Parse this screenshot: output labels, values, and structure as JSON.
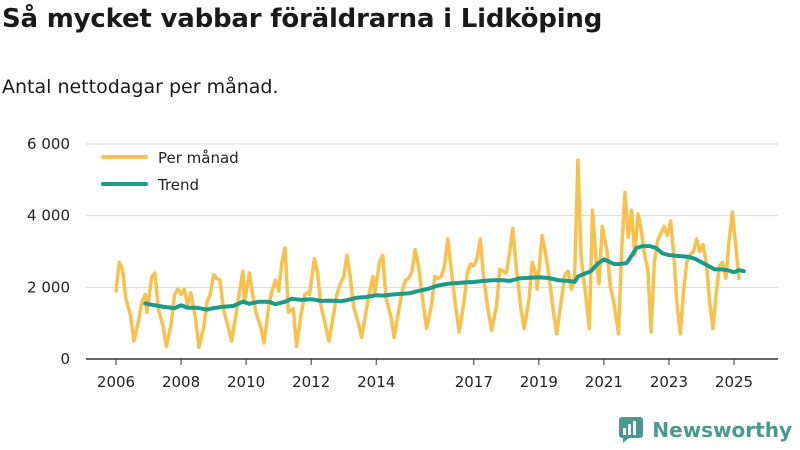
{
  "header": {
    "title": "Så mycket vabbar föräldrarna i Lidköping",
    "subtitle": "Antal nettodagar per månad."
  },
  "brand": {
    "name": "Newsworthy",
    "color": "#4a9990"
  },
  "colors": {
    "per_month": "#f8c14d",
    "trend": "#1b9a8a",
    "grid": "#d9d9d9",
    "axis": "#333333"
  },
  "chart_data": {
    "type": "line",
    "title": "Så mycket vabbar föräldrarna i Lidköping",
    "subtitle": "Antal nettodagar per månad.",
    "xlabel": "",
    "ylabel": "",
    "xlim": [
      2006,
      2025.75
    ],
    "ylim": [
      0,
      6000
    ],
    "y_ticks": [
      {
        "value": 0,
        "label": "0"
      },
      {
        "value": 2000,
        "label": "2 000"
      },
      {
        "value": 4000,
        "label": "4 000"
      },
      {
        "value": 6000,
        "label": "6 000"
      }
    ],
    "x_ticks": [
      {
        "value": 2006,
        "label": "2006"
      },
      {
        "value": 2008,
        "label": "2008"
      },
      {
        "value": 2010,
        "label": "2010"
      },
      {
        "value": 2012,
        "label": "2012"
      },
      {
        "value": 2014,
        "label": "2014"
      },
      {
        "value": 2017,
        "label": "2017"
      },
      {
        "value": 2019,
        "label": "2019"
      },
      {
        "value": 2021,
        "label": "2021"
      },
      {
        "value": 2023,
        "label": "2023"
      },
      {
        "value": 2025,
        "label": "2025"
      }
    ],
    "grid": "horizontal",
    "legend_position": "top-left",
    "series": [
      {
        "name": "Per månad",
        "color": "#f8c14d",
        "points": [
          [
            2006.0,
            1900
          ],
          [
            2006.1,
            2700
          ],
          [
            2006.2,
            2500
          ],
          [
            2006.3,
            1700
          ],
          [
            2006.45,
            1200
          ],
          [
            2006.55,
            500
          ],
          [
            2006.7,
            1100
          ],
          [
            2006.8,
            1600
          ],
          [
            2006.9,
            1800
          ],
          [
            2006.95,
            1300
          ],
          [
            2007.1,
            2300
          ],
          [
            2007.2,
            2400
          ],
          [
            2007.3,
            1400
          ],
          [
            2007.45,
            900
          ],
          [
            2007.55,
            350
          ],
          [
            2007.7,
            1000
          ],
          [
            2007.8,
            1800
          ],
          [
            2007.9,
            1950
          ],
          [
            2008.0,
            1800
          ],
          [
            2008.1,
            1950
          ],
          [
            2008.2,
            1500
          ],
          [
            2008.3,
            1850
          ],
          [
            2008.45,
            1100
          ],
          [
            2008.55,
            320
          ],
          [
            2008.7,
            900
          ],
          [
            2008.8,
            1600
          ],
          [
            2008.9,
            1800
          ],
          [
            2009.0,
            2350
          ],
          [
            2009.1,
            2250
          ],
          [
            2009.2,
            2200
          ],
          [
            2009.3,
            1400
          ],
          [
            2009.45,
            900
          ],
          [
            2009.55,
            500
          ],
          [
            2009.7,
            1300
          ],
          [
            2009.8,
            1900
          ],
          [
            2009.9,
            2450
          ],
          [
            2009.95,
            1600
          ],
          [
            2010.1,
            2400
          ],
          [
            2010.2,
            1800
          ],
          [
            2010.3,
            1300
          ],
          [
            2010.45,
            900
          ],
          [
            2010.55,
            450
          ],
          [
            2010.7,
            1500
          ],
          [
            2010.8,
            1900
          ],
          [
            2010.9,
            2200
          ],
          [
            2011.0,
            1900
          ],
          [
            2011.1,
            2700
          ],
          [
            2011.2,
            3100
          ],
          [
            2011.3,
            1300
          ],
          [
            2011.45,
            1400
          ],
          [
            2011.55,
            350
          ],
          [
            2011.7,
            1300
          ],
          [
            2011.8,
            1800
          ],
          [
            2011.9,
            1850
          ],
          [
            2011.95,
            1800
          ],
          [
            2012.1,
            2800
          ],
          [
            2012.2,
            2400
          ],
          [
            2012.3,
            1500
          ],
          [
            2012.45,
            900
          ],
          [
            2012.55,
            500
          ],
          [
            2012.7,
            1300
          ],
          [
            2012.8,
            1850
          ],
          [
            2012.9,
            2100
          ],
          [
            2013.0,
            2300
          ],
          [
            2013.1,
            2900
          ],
          [
            2013.2,
            2300
          ],
          [
            2013.3,
            1500
          ],
          [
            2013.45,
            1000
          ],
          [
            2013.55,
            600
          ],
          [
            2013.7,
            1400
          ],
          [
            2013.8,
            1900
          ],
          [
            2013.9,
            2300
          ],
          [
            2013.95,
            1800
          ],
          [
            2014.1,
            2700
          ],
          [
            2014.2,
            2900
          ],
          [
            2014.3,
            1700
          ],
          [
            2014.45,
            1200
          ],
          [
            2014.55,
            600
          ],
          [
            2014.7,
            1400
          ],
          [
            2014.8,
            1900
          ],
          [
            2014.9,
            2200
          ],
          [
            2015.0,
            2250
          ],
          [
            2015.1,
            2450
          ],
          [
            2015.2,
            3050
          ],
          [
            2015.3,
            2600
          ],
          [
            2015.45,
            1500
          ],
          [
            2015.55,
            850
          ],
          [
            2015.7,
            1500
          ],
          [
            2015.8,
            2300
          ],
          [
            2015.9,
            2250
          ],
          [
            2016.0,
            2300
          ],
          [
            2016.1,
            2600
          ],
          [
            2016.2,
            3350
          ],
          [
            2016.3,
            2550
          ],
          [
            2016.45,
            1400
          ],
          [
            2016.55,
            750
          ],
          [
            2016.7,
            1600
          ],
          [
            2016.8,
            2400
          ],
          [
            2016.9,
            2650
          ],
          [
            2017.0,
            2600
          ],
          [
            2017.1,
            2800
          ],
          [
            2017.2,
            3350
          ],
          [
            2017.3,
            2300
          ],
          [
            2017.45,
            1300
          ],
          [
            2017.55,
            800
          ],
          [
            2017.7,
            1500
          ],
          [
            2017.8,
            2500
          ],
          [
            2017.9,
            2450
          ],
          [
            2018.0,
            2400
          ],
          [
            2018.1,
            2950
          ],
          [
            2018.2,
            3650
          ],
          [
            2018.3,
            2600
          ],
          [
            2018.45,
            1400
          ],
          [
            2018.55,
            850
          ],
          [
            2018.7,
            1700
          ],
          [
            2018.8,
            2700
          ],
          [
            2018.9,
            2400
          ],
          [
            2018.95,
            1950
          ],
          [
            2019.1,
            3450
          ],
          [
            2019.2,
            3000
          ],
          [
            2019.3,
            2400
          ],
          [
            2019.45,
            1300
          ],
          [
            2019.55,
            700
          ],
          [
            2019.7,
            1700
          ],
          [
            2019.8,
            2350
          ],
          [
            2019.9,
            2450
          ],
          [
            2020.0,
            1950
          ],
          [
            2020.1,
            2300
          ],
          [
            2020.2,
            5550
          ],
          [
            2020.3,
            2850
          ],
          [
            2020.45,
            1700
          ],
          [
            2020.55,
            850
          ],
          [
            2020.65,
            4150
          ],
          [
            2020.75,
            2850
          ],
          [
            2020.85,
            2100
          ],
          [
            2020.95,
            3700
          ],
          [
            2021.1,
            3000
          ],
          [
            2021.2,
            2000
          ],
          [
            2021.3,
            1600
          ],
          [
            2021.45,
            700
          ],
          [
            2021.55,
            3100
          ],
          [
            2021.65,
            4650
          ],
          [
            2021.75,
            3400
          ],
          [
            2021.85,
            4150
          ],
          [
            2021.95,
            2900
          ],
          [
            2022.05,
            4050
          ],
          [
            2022.15,
            3600
          ],
          [
            2022.25,
            2900
          ],
          [
            2022.35,
            2500
          ],
          [
            2022.45,
            750
          ],
          [
            2022.55,
            2700
          ],
          [
            2022.65,
            3300
          ],
          [
            2022.75,
            3500
          ],
          [
            2022.85,
            3700
          ],
          [
            2022.95,
            3450
          ],
          [
            2023.05,
            3850
          ],
          [
            2023.15,
            2900
          ],
          [
            2023.25,
            1500
          ],
          [
            2023.35,
            700
          ],
          [
            2023.45,
            1900
          ],
          [
            2023.55,
            2700
          ],
          [
            2023.65,
            2900
          ],
          [
            2023.75,
            3000
          ],
          [
            2023.85,
            3350
          ],
          [
            2023.95,
            3000
          ],
          [
            2024.05,
            3200
          ],
          [
            2024.15,
            2650
          ],
          [
            2024.25,
            1600
          ],
          [
            2024.35,
            850
          ],
          [
            2024.45,
            1800
          ],
          [
            2024.55,
            2600
          ],
          [
            2024.65,
            2700
          ],
          [
            2024.75,
            2250
          ],
          [
            2024.85,
            3300
          ],
          [
            2024.95,
            4100
          ],
          [
            2025.05,
            3200
          ],
          [
            2025.15,
            2250
          ]
        ]
      },
      {
        "name": "Trend",
        "color": "#1b9a8a",
        "points": [
          [
            2006.9,
            1550
          ],
          [
            2007.2,
            1500
          ],
          [
            2007.5,
            1450
          ],
          [
            2007.8,
            1420
          ],
          [
            2008.0,
            1500
          ],
          [
            2008.2,
            1430
          ],
          [
            2008.5,
            1430
          ],
          [
            2008.8,
            1380
          ],
          [
            2009.0,
            1420
          ],
          [
            2009.3,
            1460
          ],
          [
            2009.6,
            1480
          ],
          [
            2009.9,
            1600
          ],
          [
            2010.1,
            1540
          ],
          [
            2010.4,
            1600
          ],
          [
            2010.7,
            1600
          ],
          [
            2010.9,
            1530
          ],
          [
            2011.2,
            1600
          ],
          [
            2011.4,
            1680
          ],
          [
            2011.7,
            1650
          ],
          [
            2012.0,
            1670
          ],
          [
            2012.3,
            1620
          ],
          [
            2012.6,
            1630
          ],
          [
            2012.9,
            1610
          ],
          [
            2013.1,
            1640
          ],
          [
            2013.4,
            1710
          ],
          [
            2013.7,
            1730
          ],
          [
            2014.0,
            1780
          ],
          [
            2014.2,
            1770
          ],
          [
            2014.5,
            1800
          ],
          [
            2014.8,
            1820
          ],
          [
            2015.0,
            1830
          ],
          [
            2015.3,
            1900
          ],
          [
            2015.6,
            1960
          ],
          [
            2015.9,
            2050
          ],
          [
            2016.2,
            2100
          ],
          [
            2016.5,
            2120
          ],
          [
            2016.8,
            2140
          ],
          [
            2017.0,
            2150
          ],
          [
            2017.3,
            2180
          ],
          [
            2017.6,
            2200
          ],
          [
            2017.9,
            2200
          ],
          [
            2018.1,
            2180
          ],
          [
            2018.4,
            2250
          ],
          [
            2018.7,
            2270
          ],
          [
            2019.0,
            2280
          ],
          [
            2019.3,
            2260
          ],
          [
            2019.6,
            2200
          ],
          [
            2019.9,
            2180
          ],
          [
            2020.1,
            2150
          ],
          [
            2020.2,
            2300
          ],
          [
            2020.4,
            2380
          ],
          [
            2020.6,
            2450
          ],
          [
            2020.8,
            2650
          ],
          [
            2021.0,
            2780
          ],
          [
            2021.15,
            2720
          ],
          [
            2021.3,
            2650
          ],
          [
            2021.5,
            2650
          ],
          [
            2021.7,
            2680
          ],
          [
            2021.9,
            2950
          ],
          [
            2022.0,
            3100
          ],
          [
            2022.2,
            3150
          ],
          [
            2022.4,
            3150
          ],
          [
            2022.6,
            3100
          ],
          [
            2022.8,
            2950
          ],
          [
            2023.0,
            2900
          ],
          [
            2023.2,
            2880
          ],
          [
            2023.4,
            2870
          ],
          [
            2023.6,
            2850
          ],
          [
            2023.8,
            2800
          ],
          [
            2024.0,
            2700
          ],
          [
            2024.2,
            2600
          ],
          [
            2024.4,
            2500
          ],
          [
            2024.6,
            2500
          ],
          [
            2024.8,
            2480
          ],
          [
            2025.0,
            2420
          ],
          [
            2025.15,
            2480
          ],
          [
            2025.3,
            2450
          ]
        ]
      }
    ]
  }
}
